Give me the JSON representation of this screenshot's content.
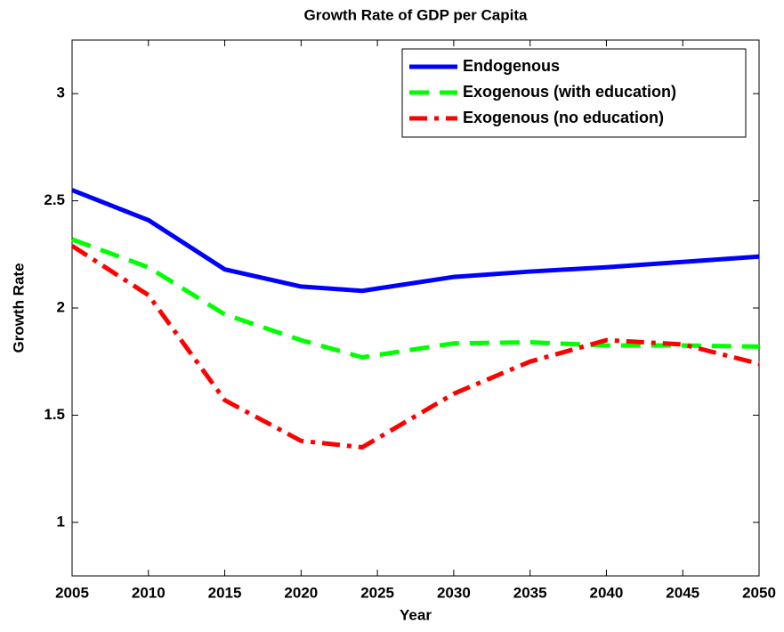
{
  "chart_data": {
    "type": "line",
    "title": "Growth Rate of GDP per Capita",
    "xlabel": "Year",
    "ylabel": "Growth Rate",
    "x": [
      2005,
      2010,
      2015,
      2020,
      2024,
      2030,
      2035,
      2040,
      2045,
      2050
    ],
    "series": [
      {
        "name": "Endogenous",
        "color": "#0000ff",
        "dash": "solid",
        "values": [
          2.55,
          2.41,
          2.18,
          2.1,
          2.08,
          2.145,
          2.17,
          2.19,
          2.215,
          2.24
        ]
      },
      {
        "name": "Exogenous (with education)",
        "color": "#00ff00",
        "dash": "dashed",
        "values": [
          2.32,
          2.19,
          1.97,
          1.85,
          1.77,
          1.835,
          1.84,
          1.825,
          1.825,
          1.82
        ]
      },
      {
        "name": "Exogenous (no education)",
        "color": "#ff0000",
        "dash": "dashdot",
        "values": [
          2.29,
          2.06,
          1.57,
          1.38,
          1.35,
          1.6,
          1.75,
          1.85,
          1.83,
          1.74
        ]
      }
    ],
    "xlim": [
      2005,
      2050
    ],
    "xticks": [
      2005,
      2010,
      2015,
      2020,
      2025,
      2030,
      2035,
      2040,
      2045,
      2050
    ],
    "ylim": [
      0.75,
      3.25
    ],
    "yticks": [
      1,
      1.5,
      2,
      2.5,
      3
    ],
    "grid": false,
    "legend": "upper right"
  }
}
